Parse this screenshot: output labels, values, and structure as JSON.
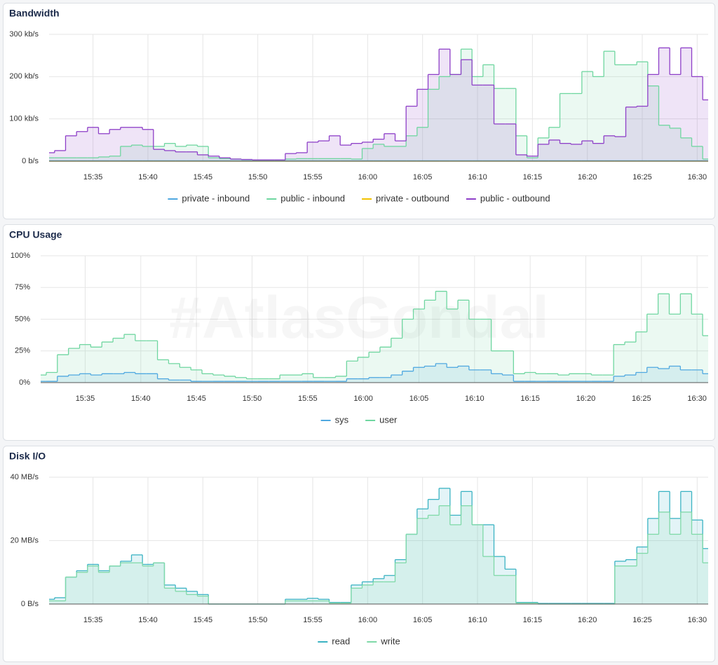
{
  "watermark": "#AtlasGondal",
  "chart_data": [
    {
      "type": "area",
      "title": "Bandwidth",
      "step": true,
      "x": [
        "15:31",
        "15:32",
        "15:33",
        "15:34",
        "15:35",
        "15:36",
        "15:37",
        "15:38",
        "15:39",
        "15:40",
        "15:41",
        "15:42",
        "15:43",
        "15:44",
        "15:45",
        "15:46",
        "15:47",
        "15:48",
        "15:49",
        "15:50",
        "15:51",
        "15:52",
        "15:53",
        "15:54",
        "15:55",
        "15:56",
        "15:57",
        "15:58",
        "15:59",
        "16:00",
        "16:01",
        "16:02",
        "16:03",
        "16:04",
        "16:05",
        "16:06",
        "16:07",
        "16:08",
        "16:09",
        "16:10",
        "16:11",
        "16:12",
        "16:13",
        "16:14",
        "16:15",
        "16:16",
        "16:17",
        "16:18",
        "16:19",
        "16:20",
        "16:21",
        "16:22",
        "16:23",
        "16:24",
        "16:25",
        "16:26",
        "16:27",
        "16:28",
        "16:29",
        "16:30",
        "16:31"
      ],
      "xlim": [
        "15:31",
        "16:31"
      ],
      "xticks": [
        "15:35",
        "15:40",
        "15:45",
        "15:50",
        "15:55",
        "16:00",
        "16:05",
        "16:10",
        "16:15",
        "16:20",
        "16:25",
        "16:30"
      ],
      "ylim": [
        0,
        300
      ],
      "yticks": [
        {
          "value": 0,
          "label": "0 b/s"
        },
        {
          "value": 100,
          "label": "100 kb/s"
        },
        {
          "value": 200,
          "label": "200 kb/s"
        },
        {
          "value": 300,
          "label": "300 kb/s"
        }
      ],
      "grid": true,
      "series": [
        {
          "name": "private - inbound",
          "color": "#4fa8e0",
          "values": [
            1,
            1,
            1,
            1,
            1,
            1,
            1,
            1,
            1,
            1,
            1,
            1,
            1,
            1,
            1,
            1,
            1,
            1,
            1,
            1,
            1,
            1,
            1,
            1,
            1,
            1,
            1,
            1,
            1,
            1,
            1,
            1,
            1,
            1,
            1,
            1,
            1,
            1,
            1,
            1,
            1,
            1,
            1,
            1,
            1,
            1,
            1,
            1,
            1,
            1,
            1,
            1,
            1,
            1,
            1,
            1,
            1,
            1,
            1,
            1,
            1
          ]
        },
        {
          "name": "public - inbound",
          "color": "#6fd6a0",
          "values": [
            8,
            8,
            8,
            8,
            8,
            10,
            12,
            35,
            38,
            35,
            35,
            42,
            35,
            38,
            35,
            8,
            6,
            5,
            4,
            3,
            3,
            3,
            5,
            6,
            6,
            6,
            6,
            6,
            5,
            30,
            40,
            35,
            35,
            60,
            80,
            170,
            200,
            205,
            265,
            200,
            228,
            172,
            172,
            60,
            8,
            55,
            80,
            160,
            160,
            212,
            200,
            260,
            228,
            228,
            235,
            178,
            85,
            78,
            55,
            35,
            5
          ]
        },
        {
          "name": "private - outbound",
          "color": "#f2c200",
          "values": [
            0,
            0,
            0,
            0,
            0,
            0,
            0,
            0,
            0,
            0,
            0,
            0,
            0,
            0,
            0,
            0,
            0,
            0,
            0,
            0,
            0,
            0,
            0,
            0,
            0,
            0,
            0,
            0,
            0,
            0,
            0,
            0,
            0,
            0,
            0,
            0,
            0,
            0,
            0,
            0,
            0,
            0,
            0,
            0,
            0,
            0,
            0,
            0,
            0,
            0,
            0,
            0,
            0,
            0,
            0,
            0,
            0,
            0,
            0,
            0,
            0
          ]
        },
        {
          "name": "public - outbound",
          "color": "#8e3fc8",
          "values": [
            20,
            25,
            60,
            70,
            80,
            65,
            75,
            80,
            80,
            75,
            28,
            25,
            22,
            22,
            15,
            12,
            8,
            5,
            4,
            3,
            3,
            3,
            18,
            20,
            45,
            48,
            60,
            38,
            42,
            45,
            52,
            65,
            48,
            130,
            170,
            205,
            265,
            205,
            240,
            180,
            180,
            88,
            88,
            15,
            12,
            40,
            50,
            42,
            40,
            48,
            42,
            60,
            58,
            128,
            130,
            205,
            268,
            205,
            268,
            200,
            145
          ]
        }
      ]
    },
    {
      "type": "area",
      "title": "CPU Usage",
      "step": true,
      "x": [
        "15:31",
        "15:32",
        "15:33",
        "15:34",
        "15:35",
        "15:36",
        "15:37",
        "15:38",
        "15:39",
        "15:40",
        "15:41",
        "15:42",
        "15:43",
        "15:44",
        "15:45",
        "15:46",
        "15:47",
        "15:48",
        "15:49",
        "15:50",
        "15:51",
        "15:52",
        "15:53",
        "15:54",
        "15:55",
        "15:56",
        "15:57",
        "15:58",
        "15:59",
        "16:00",
        "16:01",
        "16:02",
        "16:03",
        "16:04",
        "16:05",
        "16:06",
        "16:07",
        "16:08",
        "16:09",
        "16:10",
        "16:11",
        "16:12",
        "16:13",
        "16:14",
        "16:15",
        "16:16",
        "16:17",
        "16:18",
        "16:19",
        "16:20",
        "16:21",
        "16:22",
        "16:23",
        "16:24",
        "16:25",
        "16:26",
        "16:27",
        "16:28",
        "16:29",
        "16:30",
        "16:31"
      ],
      "xlim": [
        "15:31",
        "16:31"
      ],
      "xticks": [
        "15:35",
        "15:40",
        "15:45",
        "15:50",
        "15:55",
        "16:00",
        "16:05",
        "16:10",
        "16:15",
        "16:20",
        "16:25",
        "16:30"
      ],
      "ylim": [
        0,
        100
      ],
      "yticks": [
        {
          "value": 0,
          "label": "0%"
        },
        {
          "value": 25,
          "label": "25%"
        },
        {
          "value": 50,
          "label": "50%"
        },
        {
          "value": 75,
          "label": "75%"
        },
        {
          "value": 100,
          "label": "100%"
        }
      ],
      "grid": true,
      "series": [
        {
          "name": "sys",
          "color": "#4fa8e0",
          "values": [
            1,
            1,
            5,
            6,
            7,
            6,
            7,
            7,
            8,
            7,
            7,
            3,
            2,
            2,
            1,
            1,
            1,
            1,
            1,
            1,
            1,
            1,
            1,
            1,
            1,
            1,
            1,
            1,
            3,
            3,
            4,
            4,
            6,
            9,
            12,
            13,
            15,
            12,
            13,
            10,
            10,
            7,
            6,
            1,
            1,
            1,
            1,
            1,
            1,
            1,
            1,
            1,
            5,
            6,
            8,
            12,
            11,
            13,
            10,
            10,
            7
          ]
        },
        {
          "name": "user",
          "color": "#6fd6a0",
          "values": [
            6,
            8,
            22,
            27,
            30,
            28,
            32,
            35,
            38,
            33,
            33,
            18,
            15,
            12,
            10,
            7,
            6,
            5,
            4,
            3,
            3,
            3,
            6,
            6,
            7,
            4,
            4,
            5,
            17,
            20,
            24,
            28,
            35,
            50,
            58,
            65,
            72,
            58,
            65,
            50,
            50,
            25,
            25,
            7,
            8,
            7,
            7,
            6,
            7,
            7,
            6,
            6,
            30,
            32,
            40,
            54,
            70,
            54,
            70,
            54,
            37
          ]
        }
      ]
    },
    {
      "type": "area",
      "title": "Disk I/O",
      "step": true,
      "x": [
        "15:31",
        "15:32",
        "15:33",
        "15:34",
        "15:35",
        "15:36",
        "15:37",
        "15:38",
        "15:39",
        "15:40",
        "15:41",
        "15:42",
        "15:43",
        "15:44",
        "15:45",
        "15:46",
        "15:47",
        "15:48",
        "15:49",
        "15:50",
        "15:51",
        "15:52",
        "15:53",
        "15:54",
        "15:55",
        "15:56",
        "15:57",
        "15:58",
        "15:59",
        "16:00",
        "16:01",
        "16:02",
        "16:03",
        "16:04",
        "16:05",
        "16:06",
        "16:07",
        "16:08",
        "16:09",
        "16:10",
        "16:11",
        "16:12",
        "16:13",
        "16:14",
        "16:15",
        "16:16",
        "16:17",
        "16:18",
        "16:19",
        "16:20",
        "16:21",
        "16:22",
        "16:23",
        "16:24",
        "16:25",
        "16:26",
        "16:27",
        "16:28",
        "16:29",
        "16:30",
        "16:31"
      ],
      "xlim": [
        "15:31",
        "16:31"
      ],
      "xticks": [
        "15:35",
        "15:40",
        "15:45",
        "15:50",
        "15:55",
        "16:00",
        "16:05",
        "16:10",
        "16:15",
        "16:20",
        "16:25",
        "16:30"
      ],
      "ylim": [
        0,
        40
      ],
      "yticks": [
        {
          "value": 0,
          "label": "0 B/s"
        },
        {
          "value": 20,
          "label": "20 MB/s"
        },
        {
          "value": 40,
          "label": "40 MB/s"
        }
      ],
      "grid": true,
      "series": [
        {
          "name": "read",
          "color": "#3bb3c3",
          "values": [
            1.5,
            2,
            8.5,
            10.5,
            12.5,
            10.5,
            12,
            13.5,
            15.5,
            12.5,
            13,
            6,
            5,
            4,
            3,
            0,
            0,
            0,
            0,
            0,
            0,
            0,
            1.5,
            1.5,
            1.8,
            1.5,
            0.5,
            0.5,
            6,
            7,
            8,
            9,
            14,
            22,
            30,
            33,
            36.5,
            28,
            35.5,
            25,
            25,
            15,
            11,
            0.5,
            0.5,
            0.2,
            0.2,
            0.2,
            0.2,
            0.2,
            0.2,
            0.2,
            13.5,
            14,
            18,
            27,
            35.5,
            27,
            35.5,
            26.5,
            17.5
          ]
        },
        {
          "name": "write",
          "color": "#7fd9a8",
          "values": [
            1,
            1,
            8.5,
            10,
            12,
            10,
            12,
            13,
            13,
            12,
            13,
            5,
            4,
            3,
            2.5,
            0,
            0,
            0,
            0,
            0,
            0,
            0,
            1,
            1,
            1,
            1,
            0.3,
            0.3,
            5,
            6,
            7,
            7,
            13,
            22,
            27,
            28,
            31,
            25,
            31,
            25,
            15,
            9,
            9,
            0.3,
            0.3,
            0,
            0,
            0,
            0,
            0,
            0,
            0,
            12,
            12,
            16,
            22,
            29,
            22,
            29,
            22,
            13
          ]
        }
      ]
    }
  ]
}
